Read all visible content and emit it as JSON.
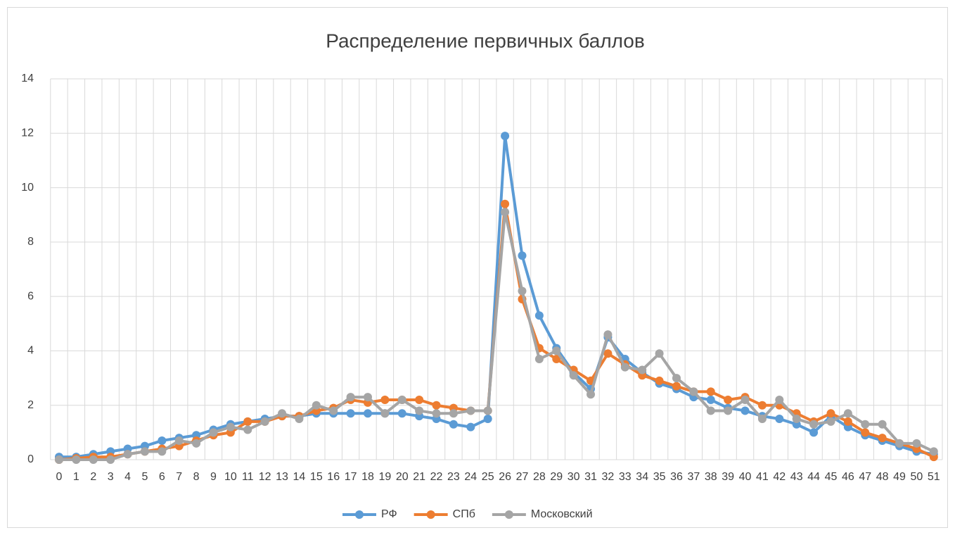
{
  "chart_data": {
    "type": "line",
    "title": "Распределение первичных баллов",
    "categories": [
      "0",
      "1",
      "2",
      "3",
      "4",
      "5",
      "6",
      "7",
      "8",
      "9",
      "10",
      "11",
      "12",
      "13",
      "14",
      "15",
      "16",
      "17",
      "18",
      "19",
      "20",
      "21",
      "22",
      "23",
      "24",
      "25",
      "26",
      "27",
      "28",
      "29",
      "30",
      "31",
      "32",
      "33",
      "34",
      "35",
      "36",
      "37",
      "38",
      "39",
      "40",
      "41",
      "42",
      "43",
      "44",
      "45",
      "46",
      "47",
      "48",
      "49",
      "50",
      "51"
    ],
    "series": [
      {
        "name": "РФ",
        "color": "#5b9bd5",
        "values": [
          0.1,
          0.1,
          0.2,
          0.3,
          0.4,
          0.5,
          0.7,
          0.8,
          0.9,
          1.1,
          1.3,
          1.4,
          1.5,
          1.6,
          1.6,
          1.7,
          1.7,
          1.7,
          1.7,
          1.7,
          1.7,
          1.6,
          1.5,
          1.3,
          1.2,
          1.5,
          11.9,
          7.5,
          5.3,
          4.1,
          3.2,
          2.6,
          4.5,
          3.7,
          3.2,
          2.8,
          2.6,
          2.3,
          2.2,
          1.9,
          1.8,
          1.6,
          1.5,
          1.3,
          1.0,
          1.6,
          1.2,
          0.9,
          0.7,
          0.5,
          0.3,
          0.2
        ]
      },
      {
        "name": "СПб",
        "color": "#ed7d31",
        "values": [
          0,
          0.05,
          0.1,
          0.1,
          0.2,
          0.3,
          0.4,
          0.5,
          0.7,
          0.9,
          1.0,
          1.4,
          1.4,
          1.6,
          1.6,
          1.8,
          1.9,
          2.2,
          2.1,
          2.2,
          2.2,
          2.2,
          2.0,
          1.9,
          1.8,
          1.8,
          9.4,
          5.9,
          4.1,
          3.7,
          3.3,
          2.9,
          3.9,
          3.5,
          3.1,
          2.9,
          2.7,
          2.5,
          2.5,
          2.2,
          2.3,
          2.0,
          2.0,
          1.7,
          1.4,
          1.7,
          1.4,
          1.0,
          0.8,
          0.6,
          0.4,
          0.1
        ]
      },
      {
        "name": "Московский",
        "color": "#a5a5a5",
        "values": [
          0,
          0,
          0,
          0,
          0.2,
          0.3,
          0.3,
          0.7,
          0.6,
          1.0,
          1.2,
          1.1,
          1.4,
          1.7,
          1.5,
          2.0,
          1.8,
          2.3,
          2.3,
          1.7,
          2.2,
          1.8,
          1.7,
          1.7,
          1.8,
          1.8,
          9.1,
          6.2,
          3.7,
          4.0,
          3.1,
          2.4,
          4.6,
          3.4,
          3.3,
          3.9,
          3.0,
          2.5,
          1.8,
          1.8,
          2.2,
          1.5,
          2.2,
          1.5,
          1.3,
          1.4,
          1.7,
          1.3,
          1.3,
          0.6,
          0.6,
          0.3
        ]
      }
    ],
    "ylim": [
      0,
      14
    ],
    "yticks": [
      0,
      2,
      4,
      6,
      8,
      10,
      12,
      14
    ],
    "grid": true,
    "legend": "bottom"
  }
}
